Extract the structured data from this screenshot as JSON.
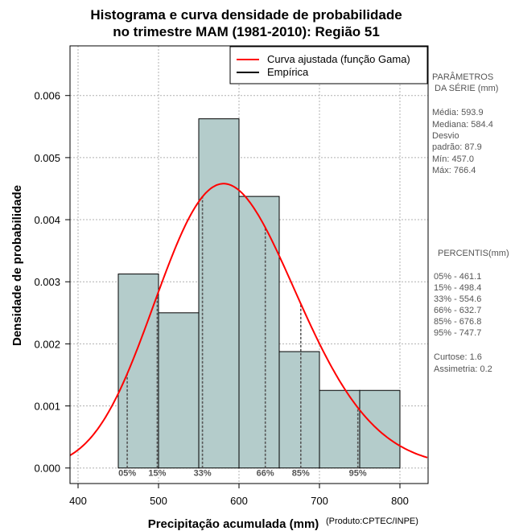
{
  "chart_data": {
    "type": "bar",
    "title_lines": [
      "Histograma e curva densidade de probabilidade",
      "no trimestre MAM (1981-2010): Região 51"
    ],
    "xlabel": "Precipitação acumulada (mm)",
    "ylabel": "Densidade de probabilidade",
    "credit": "(Produto:CPTEC/INPE)",
    "xlim": [
      390,
      835
    ],
    "ylim": [
      -0.00025,
      0.0068
    ],
    "x_ticks": [
      400,
      500,
      600,
      700,
      800
    ],
    "y_ticks": [
      0.0,
      0.001,
      0.002,
      0.003,
      0.004,
      0.005,
      0.006
    ],
    "y_tick_labels": [
      "0.000",
      "0.001",
      "0.002",
      "0.003",
      "0.004",
      "0.005",
      "0.006"
    ],
    "grid": true,
    "bins": [
      {
        "from": 450,
        "to": 500,
        "density": 0.003125
      },
      {
        "from": 500,
        "to": 550,
        "density": 0.0025
      },
      {
        "from": 550,
        "to": 600,
        "density": 0.005625
      },
      {
        "from": 600,
        "to": 650,
        "density": 0.004375
      },
      {
        "from": 650,
        "to": 700,
        "density": 0.001875
      },
      {
        "from": 700,
        "to": 750,
        "density": 0.00125
      },
      {
        "from": 750,
        "to": 800,
        "density": 0.00125
      }
    ],
    "gamma_fit": {
      "mean": 593.9,
      "sd": 87.9
    },
    "legend": [
      {
        "label": "Curva ajustada (função Gama)",
        "color": "#ff0000"
      },
      {
        "label": "Empírica",
        "color": "#000000"
      }
    ],
    "legend_placement": "top-right",
    "percentiles": [
      {
        "label": "05%",
        "value": 461.1
      },
      {
        "label": "15%",
        "value": 498.4
      },
      {
        "label": "33%",
        "value": 554.6
      },
      {
        "label": "66%",
        "value": 632.7
      },
      {
        "label": "85%",
        "value": 676.8
      },
      {
        "label": "95%",
        "value": 747.7
      }
    ],
    "side_panel": {
      "params_title_1": "PARÂMETROS",
      "params_title_2": "DA SÉRIE (mm)",
      "params": [
        "Média:  593.9",
        "Mediana:  584.4",
        "Desvio",
        "padrão:  87.9",
        "Mín:  457.0",
        "Máx:  766.4"
      ],
      "percentis_title": "PERCENTIS(mm)",
      "percentis": [
        "05% -   461.1",
        "15% -   498.4",
        "33% -   554.6",
        "66% -   632.7",
        "85% -   676.8",
        "95% -   747.7"
      ],
      "curtose": "Curtose:  1.6",
      "assimetria": "Assimetria:  0.2"
    },
    "colors": {
      "bar_fill": "#b4cccb",
      "bar_stroke": "#000000",
      "curve": "#ff0000",
      "grid": "#b0b0b0",
      "percentile_line": "#555555"
    }
  }
}
